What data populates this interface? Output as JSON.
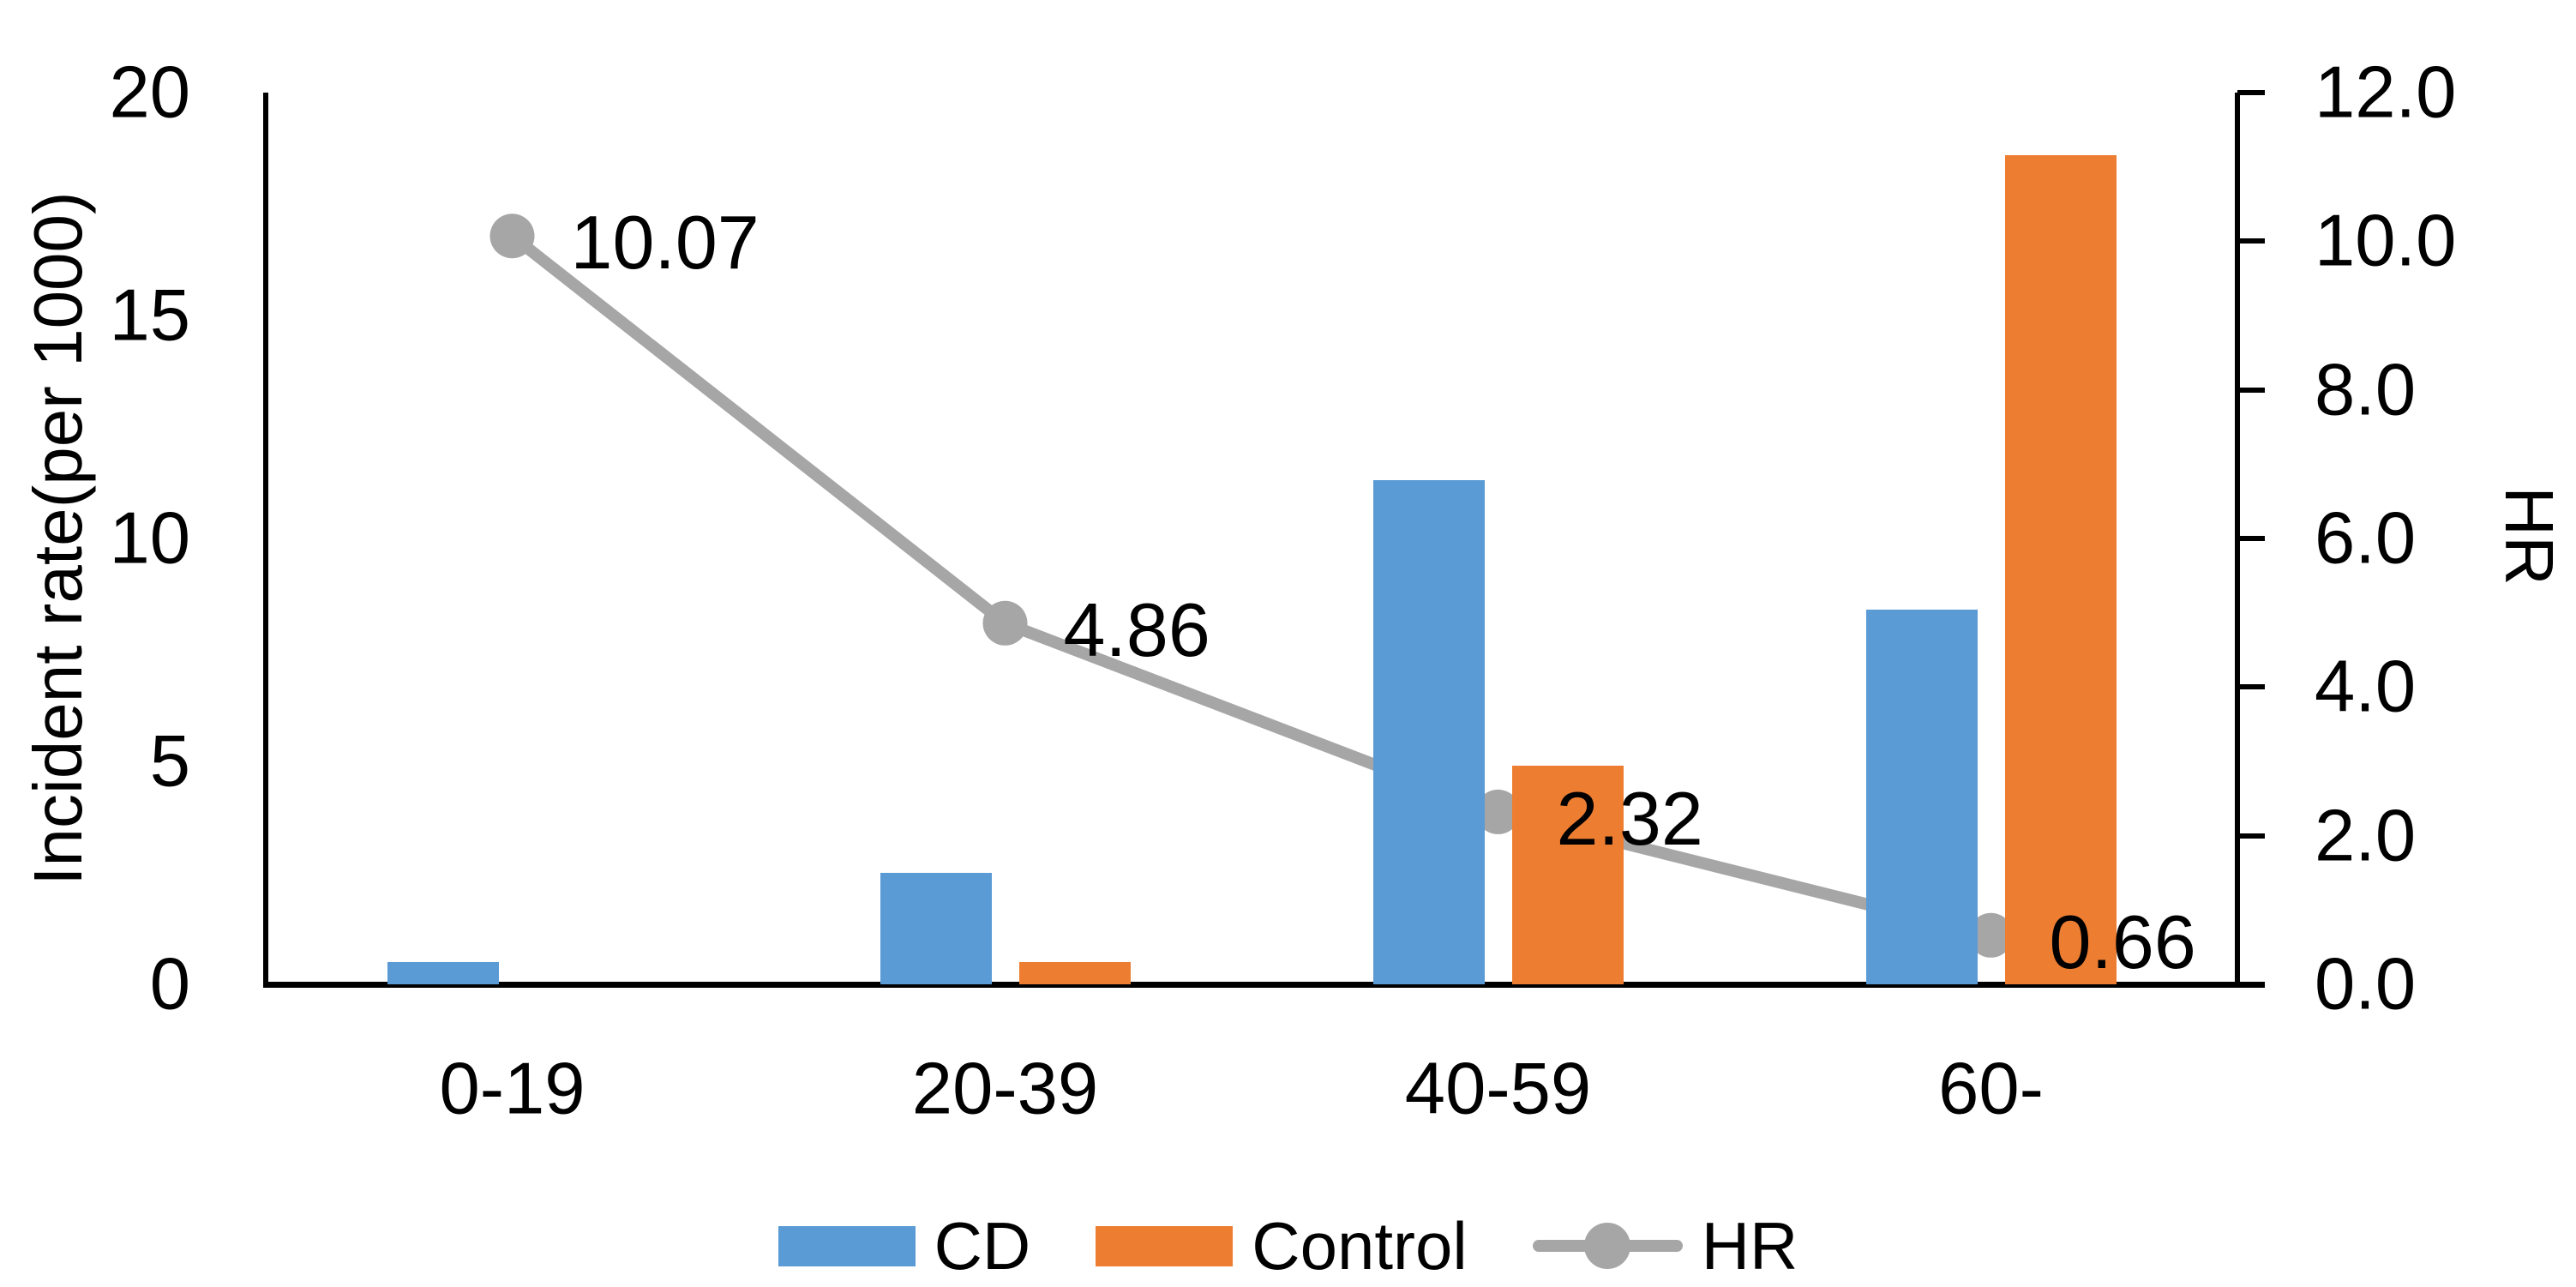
{
  "chart_data": {
    "type": "combo-bar-line",
    "categories": [
      "0-19",
      "20-39",
      "40-59",
      "60-"
    ],
    "bar_series": [
      {
        "name": "CD",
        "color": "#5B9BD5",
        "values": [
          0.5,
          2.5,
          11.3,
          8.4
        ]
      },
      {
        "name": "Control",
        "color": "#ED7D31",
        "values": [
          0,
          0.5,
          4.9,
          18.6
        ]
      }
    ],
    "line_series": {
      "name": "HR",
      "color": "#A6A6A6",
      "values": [
        10.07,
        4.86,
        2.32,
        0.66
      ],
      "labels": [
        "10.07",
        "4.86",
        "2.32",
        "0.66"
      ]
    },
    "left_axis": {
      "title": "Incident rate(per 1000)",
      "min": 0,
      "max": 20,
      "ticks": [
        "0",
        "5",
        "10",
        "15",
        "20"
      ],
      "tick_values": [
        0,
        5,
        10,
        15,
        20
      ]
    },
    "right_axis": {
      "title": "HR",
      "min": 0,
      "max": 12,
      "ticks": [
        "0.0",
        "2.0",
        "4.0",
        "6.0",
        "8.0",
        "10.0",
        "12.0"
      ],
      "tick_values": [
        0,
        2,
        4,
        6,
        8,
        10,
        12
      ]
    },
    "legend": [
      {
        "label": "CD",
        "type": "swatch",
        "color": "#5B9BD5"
      },
      {
        "label": "Control",
        "type": "swatch",
        "color": "#ED7D31"
      },
      {
        "label": "HR",
        "type": "line-marker",
        "color": "#A6A6A6"
      }
    ],
    "legend_position": "bottom",
    "grid": false,
    "axis_color": "#000000",
    "text_color": "#000000"
  }
}
